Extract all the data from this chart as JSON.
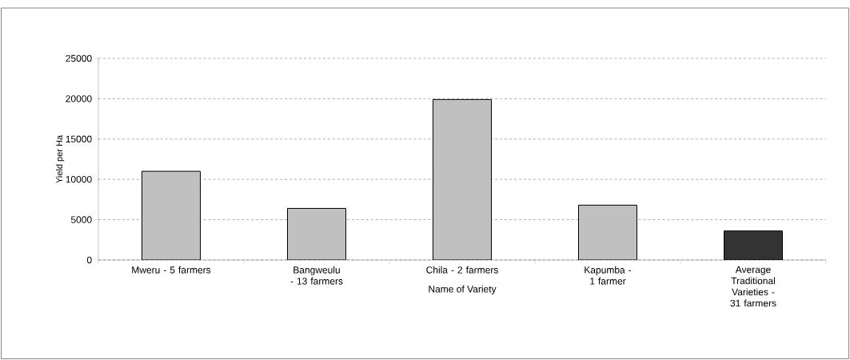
{
  "chart_data": {
    "type": "bar",
    "categories": [
      "Mweru - 5 farmers",
      "Bangweulu - 13 farmers",
      "Chila - 2 farmers",
      "Kapumba - 1 farmer",
      "Average Traditional Varieties - 31 farmers"
    ],
    "values": [
      11000,
      6400,
      19900,
      6800,
      3600
    ],
    "colors": [
      "#c0c0c0",
      "#c0c0c0",
      "#c0c0c0",
      "#c0c0c0",
      "#333333"
    ],
    "xlabel": "Name of Variety",
    "ylabel": "Yield per Ha",
    "ylim": [
      0,
      25000
    ],
    "yticks": [
      0,
      5000,
      10000,
      15000,
      20000,
      25000
    ],
    "grid": "y"
  }
}
